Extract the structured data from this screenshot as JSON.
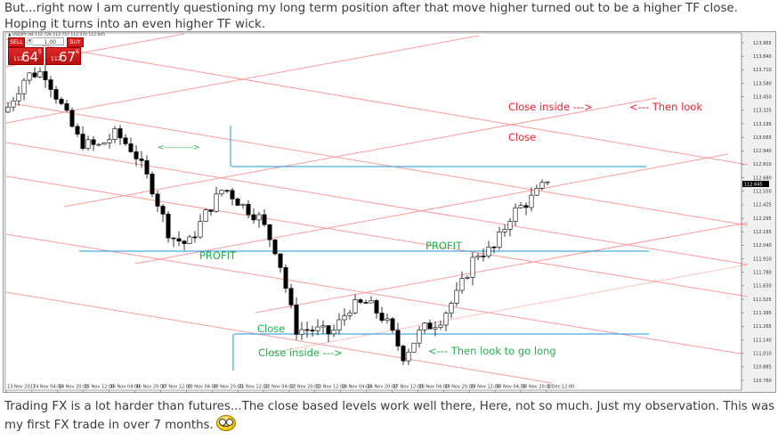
{
  "post": {
    "top_text": "But...right now I am currently questioning my long term position after that move higher turned out to be a higher TF close. Hoping it turns into an even higher TF wick.",
    "bottom_text": "Trading FX is a lot harder than futures...The close based levels work well there, Here, not so much. Just my observation. This was my first FX trade in over 7 months.",
    "emoji_icon": "rolleyes-smiley-icon"
  },
  "chart": {
    "symbol_line": "▲ USDJPY,H4  112.726 112.757 112.570 112.645",
    "current_price_label": "112.645",
    "trade_panel": {
      "sell_label": "SELL",
      "buy_label": "BUY",
      "lot": "1.00",
      "sell_price": {
        "prefix": "112",
        "big": "64",
        "sup": "5"
      },
      "buy_price": {
        "prefix": "112",
        "big": "67",
        "sup": "6"
      }
    },
    "y_axis_labels": [
      "113.965",
      "113.840",
      "113.710",
      "113.580",
      "113.450",
      "113.325",
      "113.195",
      "113.065",
      "112.940",
      "112.810",
      "112.680",
      "112.550",
      "112.425",
      "112.295",
      "112.165",
      "112.040",
      "111.910",
      "111.780",
      "111.650",
      "111.525",
      "111.395",
      "111.265",
      "111.140",
      "111.010",
      "110.885",
      "110.760"
    ],
    "y_range": [
      110.76,
      113.965
    ],
    "x_axis_labels": [
      "13 Nov 2017",
      "14 Nov 04:00",
      "14 Nov 20:00",
      "15 Nov 12:00",
      "16 Nov 04:00",
      "16 Nov 20:00",
      "17 Nov 12:00",
      "20 Nov 04:00",
      "20 Nov 20:00",
      "21 Nov 12:00",
      "22 Nov 04:00",
      "22 Nov 20:00",
      "23 Nov 12:00",
      "24 Nov 04:00",
      "24 Nov 20:00",
      "27 Nov 12:00",
      "28 Nov 04:00",
      "28 Nov 20:00",
      "29 Nov 12:00",
      "30 Nov 04:00",
      "30 Nov 20:00",
      "1 Dec 12:00"
    ],
    "price_path": [
      113.356,
      113.652,
      113.694,
      113.356,
      113.018,
      112.976,
      113.102,
      112.933,
      112.595,
      112.13,
      112.045,
      112.341,
      112.595,
      112.426,
      112.299,
      111.961,
      111.242,
      111.242,
      111.2,
      111.453,
      111.496,
      111.326,
      110.988,
      111.242,
      111.326,
      111.58,
      111.961,
      112.003,
      112.341,
      112.468,
      112.645
    ],
    "colors": {
      "trendline": "#ff8a8a",
      "level": "#1a9ad6",
      "red_text": "#ee2233",
      "green_text": "#22b04a",
      "bull": "#ffffff",
      "bear": "#000000"
    },
    "annotations": {
      "close_inside_red": "Close inside --->",
      "then_look": "<--- Then look",
      "close_red": "Close",
      "arrow_green": "<---------->",
      "profit_left": "PROFIT",
      "profit_right": "PROFIT",
      "close_green": "Close",
      "close_inside_green": "Close inside --->",
      "then_look_long": "<--- Then look to go long"
    }
  }
}
